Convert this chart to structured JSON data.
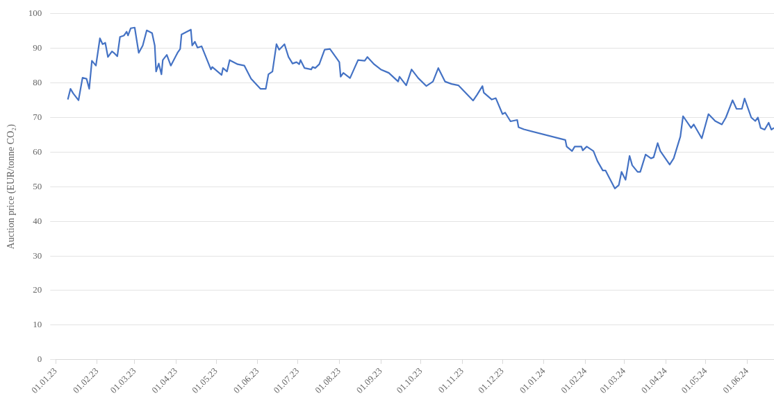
{
  "chart_data": {
    "type": "line",
    "ylabel": "Auction price (EUR/tonne CO₂)",
    "xlim": [
      "2023-01-01",
      "2024-06-21"
    ],
    "xticks": [
      {
        "value": "2023-01-01",
        "label": "01.01.23"
      },
      {
        "value": "2023-02-01",
        "label": "01.02.23"
      },
      {
        "value": "2023-03-01",
        "label": "01.03.23"
      },
      {
        "value": "2023-04-01",
        "label": "01.04.23"
      },
      {
        "value": "2023-05-01",
        "label": "01.05.23"
      },
      {
        "value": "2023-06-01",
        "label": "01.06.23"
      },
      {
        "value": "2023-07-01",
        "label": "01.07.23"
      },
      {
        "value": "2023-08-01",
        "label": "01.08.23"
      },
      {
        "value": "2023-09-01",
        "label": "01.09.23"
      },
      {
        "value": "2023-10-01",
        "label": "01.10.23"
      },
      {
        "value": "2023-11-01",
        "label": "01.11.23"
      },
      {
        "value": "2023-12-01",
        "label": "01.12.23"
      },
      {
        "value": "2024-01-01",
        "label": "01.01.24"
      },
      {
        "value": "2024-02-01",
        "label": "01.02.24"
      },
      {
        "value": "2024-03-01",
        "label": "01.03.24"
      },
      {
        "value": "2024-04-01",
        "label": "01.04.24"
      },
      {
        "value": "2024-05-01",
        "label": "01.05.24"
      },
      {
        "value": "2024-06-01",
        "label": "01.06.24"
      }
    ],
    "ylim": [
      0,
      100
    ],
    "yticks": [
      0,
      10,
      20,
      30,
      40,
      50,
      60,
      70,
      80,
      90,
      100
    ],
    "grid": "y",
    "legend": false,
    "marker": "none",
    "line_style": "solid",
    "series": [
      {
        "color": "#4472c4",
        "x": [
          "2023-01-10",
          "2023-01-12",
          "2023-01-14",
          "2023-01-18",
          "2023-01-21",
          "2023-01-24",
          "2023-01-26",
          "2023-01-28",
          "2023-01-31",
          "2023-02-03",
          "2023-02-05",
          "2023-02-07",
          "2023-02-09",
          "2023-02-12",
          "2023-02-14",
          "2023-02-16",
          "2023-02-18",
          "2023-02-21",
          "2023-02-23",
          "2023-02-24",
          "2023-02-26",
          "2023-03-01",
          "2023-03-04",
          "2023-03-07",
          "2023-03-10",
          "2023-03-14",
          "2023-03-16",
          "2023-03-17",
          "2023-03-19",
          "2023-03-21",
          "2023-03-22",
          "2023-03-25",
          "2023-03-28",
          "2023-04-02",
          "2023-04-04",
          "2023-04-05",
          "2023-04-12",
          "2023-04-13",
          "2023-04-15",
          "2023-04-17",
          "2023-04-20",
          "2023-04-27",
          "2023-04-28",
          "2023-05-05",
          "2023-05-06",
          "2023-05-09",
          "2023-05-11",
          "2023-05-17",
          "2023-05-22",
          "2023-05-27",
          "2023-06-03",
          "2023-06-07",
          "2023-06-09",
          "2023-06-12",
          "2023-06-15",
          "2023-06-17",
          "2023-06-21",
          "2023-06-24",
          "2023-06-27",
          "2023-06-30",
          "2023-07-02",
          "2023-07-03",
          "2023-07-06",
          "2023-07-11",
          "2023-07-12",
          "2023-07-14",
          "2023-07-17",
          "2023-07-21",
          "2023-07-25",
          "2023-07-30",
          "2023-08-01",
          "2023-08-02",
          "2023-08-04",
          "2023-08-09",
          "2023-08-15",
          "2023-08-20",
          "2023-08-22",
          "2023-08-27",
          "2023-09-01",
          "2023-09-07",
          "2023-09-14",
          "2023-09-15",
          "2023-09-20",
          "2023-09-24",
          "2023-09-29",
          "2023-10-05",
          "2023-10-10",
          "2023-10-14",
          "2023-10-19",
          "2023-10-24",
          "2023-10-29",
          "2023-11-02",
          "2023-11-09",
          "2023-11-12",
          "2023-11-16",
          "2023-11-17",
          "2023-11-23",
          "2023-11-26",
          "2023-12-01",
          "2023-12-03",
          "2023-12-07",
          "2023-12-12",
          "2023-12-13",
          "2023-12-17",
          "2024-01-17",
          "2024-01-18",
          "2024-01-22",
          "2024-01-24",
          "2024-01-29",
          "2024-01-30",
          "2024-02-02",
          "2024-02-07",
          "2024-02-10",
          "2024-02-14",
          "2024-02-16",
          "2024-02-23",
          "2024-02-26",
          "2024-02-28",
          "2024-03-02",
          "2024-03-05",
          "2024-03-07",
          "2024-03-11",
          "2024-03-13",
          "2024-03-17",
          "2024-03-21",
          "2024-03-23",
          "2024-03-26",
          "2024-03-28",
          "2024-04-04",
          "2024-04-07",
          "2024-04-12",
          "2024-04-14",
          "2024-04-20",
          "2024-04-22",
          "2024-04-28",
          "2024-05-03",
          "2024-05-08",
          "2024-05-13",
          "2024-05-16",
          "2024-05-21",
          "2024-05-24",
          "2024-05-28",
          "2024-05-30",
          "2024-06-04",
          "2024-06-07",
          "2024-06-09",
          "2024-06-11",
          "2024-06-14",
          "2024-06-17",
          "2024-06-19",
          "2024-06-21"
        ],
        "values": [
          75.2,
          78.3,
          77,
          75,
          81.5,
          81.2,
          78.3,
          86.4,
          85,
          92.9,
          91.2,
          91.6,
          87.5,
          89.1,
          88.5,
          87.7,
          93.3,
          93.7,
          94.8,
          93.7,
          95.8,
          96,
          88.7,
          90.8,
          95.2,
          94.4,
          90.8,
          83.3,
          85.6,
          82.5,
          86.6,
          88.1,
          85,
          88.7,
          89.8,
          94,
          95.4,
          90.8,
          91.9,
          90.2,
          90.6,
          83.9,
          84.6,
          82.3,
          84.3,
          83.3,
          86.6,
          85.4,
          85,
          81.2,
          78.3,
          78.3,
          82.5,
          83.3,
          91.2,
          89.6,
          91.2,
          87.5,
          85.6,
          86,
          85.4,
          86.6,
          84.3,
          83.9,
          84.6,
          84.3,
          85.4,
          89.6,
          89.8,
          87.1,
          86,
          81.8,
          82.9,
          81.4,
          86.6,
          86.4,
          87.5,
          85.4,
          83.9,
          82.9,
          80.4,
          81.8,
          79.3,
          83.9,
          81.4,
          79.1,
          80.4,
          84.3,
          80.4,
          79.7,
          79.3,
          77.7,
          74.9,
          76.6,
          79.1,
          77.2,
          75.2,
          75.6,
          71,
          71.4,
          68.9,
          69.3,
          67.2,
          66.6,
          63.5,
          61.6,
          60.3,
          61.6,
          61.6,
          60.5,
          61.6,
          60.3,
          57.4,
          54.7,
          54.7,
          49.5,
          50.5,
          54.3,
          52,
          58.9,
          56.2,
          54.3,
          54.3,
          59.3,
          58.2,
          58.5,
          62.6,
          60.3,
          56.4,
          58.2,
          64.5,
          70.4,
          67,
          68,
          64,
          71,
          69,
          68,
          70,
          75,
          72.5,
          72.5,
          75.5,
          70,
          69,
          70,
          67,
          66.5,
          68.5,
          66.5,
          67
        ]
      }
    ]
  }
}
